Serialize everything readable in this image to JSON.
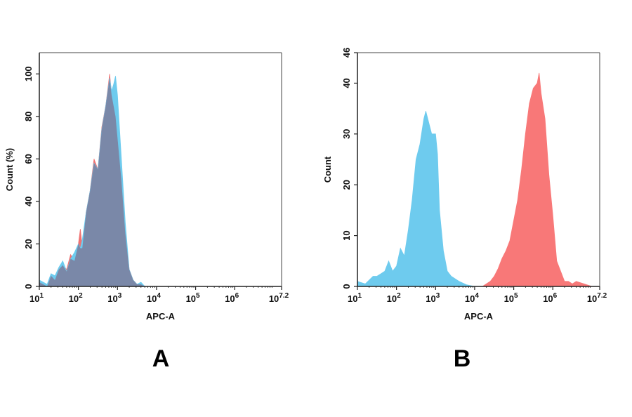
{
  "chart_data": [
    {
      "type": "area",
      "panel_label": "A",
      "xlabel": "APC-A",
      "ylabel": "Count (%)",
      "xscale": "log",
      "xlim_log10": [
        1,
        7.2
      ],
      "ylim": [
        0,
        110
      ],
      "xticks": [
        {
          "exp": "1"
        },
        {
          "exp": "2"
        },
        {
          "exp": "3"
        },
        {
          "exp": "4"
        },
        {
          "exp": "5"
        },
        {
          "exp": "6"
        },
        {
          "exp": "7.2"
        }
      ],
      "yticks": [
        0,
        20,
        40,
        60,
        80,
        100
      ],
      "grid": false,
      "overlap_color": "#7a88a8",
      "x_log10": [
        1.0,
        1.1,
        1.2,
        1.3,
        1.4,
        1.5,
        1.6,
        1.7,
        1.8,
        1.9,
        2.0,
        2.05,
        2.1,
        2.2,
        2.3,
        2.4,
        2.5,
        2.6,
        2.7,
        2.8,
        2.85,
        2.9,
        2.95,
        3.0,
        3.1,
        3.2,
        3.3,
        3.4,
        3.5,
        3.6,
        3.7,
        4.0,
        5.0,
        6.0,
        7.2
      ],
      "series": [
        {
          "color": "#f07272",
          "values": [
            2,
            1,
            0,
            5,
            3,
            8,
            10,
            8,
            15,
            12,
            20,
            27,
            18,
            35,
            45,
            60,
            55,
            75,
            85,
            100,
            90,
            85,
            80,
            70,
            50,
            25,
            8,
            3,
            1,
            1,
            0,
            0,
            0,
            0,
            0
          ]
        },
        {
          "color": "#6ecbee",
          "values": [
            3,
            2,
            1,
            6,
            5,
            9,
            12,
            7,
            13,
            16,
            20,
            18,
            22,
            35,
            45,
            58,
            55,
            74,
            85,
            98,
            92,
            95,
            99,
            90,
            60,
            30,
            8,
            3,
            1,
            2,
            0,
            0,
            0,
            0,
            0
          ]
        }
      ]
    },
    {
      "type": "area",
      "panel_label": "B",
      "xlabel": "APC-A",
      "ylabel": "Count",
      "xscale": "log",
      "xlim_log10": [
        1,
        7.2
      ],
      "ylim": [
        0,
        46
      ],
      "xticks": [
        {
          "exp": "1"
        },
        {
          "exp": "2"
        },
        {
          "exp": "3"
        },
        {
          "exp": "4"
        },
        {
          "exp": "5"
        },
        {
          "exp": "6"
        },
        {
          "exp": "7.2"
        }
      ],
      "yticks": [
        0,
        10,
        20,
        30,
        40,
        46
      ],
      "grid": false,
      "series": [
        {
          "color": "#6ecbee",
          "x_log10": [
            1.0,
            1.2,
            1.4,
            1.5,
            1.6,
            1.7,
            1.8,
            1.9,
            2.0,
            2.1,
            2.2,
            2.3,
            2.4,
            2.5,
            2.6,
            2.7,
            2.75,
            2.8,
            2.9,
            3.0,
            3.05,
            3.1,
            3.2,
            3.3,
            3.4,
            3.6,
            3.8,
            4.0
          ],
          "values": [
            1,
            0.5,
            2,
            2,
            2.5,
            3,
            5,
            3,
            4,
            7.5,
            6,
            11,
            17,
            25,
            28,
            33,
            34.5,
            33,
            30,
            30,
            26,
            15,
            7,
            3,
            2,
            1,
            0.3,
            0
          ]
        },
        {
          "color": "#f87878",
          "x_log10": [
            4.2,
            4.4,
            4.5,
            4.6,
            4.7,
            4.8,
            4.9,
            5.0,
            5.1,
            5.2,
            5.3,
            5.4,
            5.5,
            5.6,
            5.65,
            5.7,
            5.8,
            5.9,
            6.0,
            6.1,
            6.2,
            6.3,
            6.4,
            6.5,
            6.6,
            6.8,
            7.0
          ],
          "values": [
            0,
            1,
            2,
            3.5,
            5.5,
            7,
            9,
            13,
            17,
            23,
            30,
            36,
            39,
            40,
            42,
            38,
            33,
            22,
            14,
            5,
            3,
            1,
            1,
            0.5,
            1,
            0.5,
            0
          ]
        }
      ]
    }
  ]
}
